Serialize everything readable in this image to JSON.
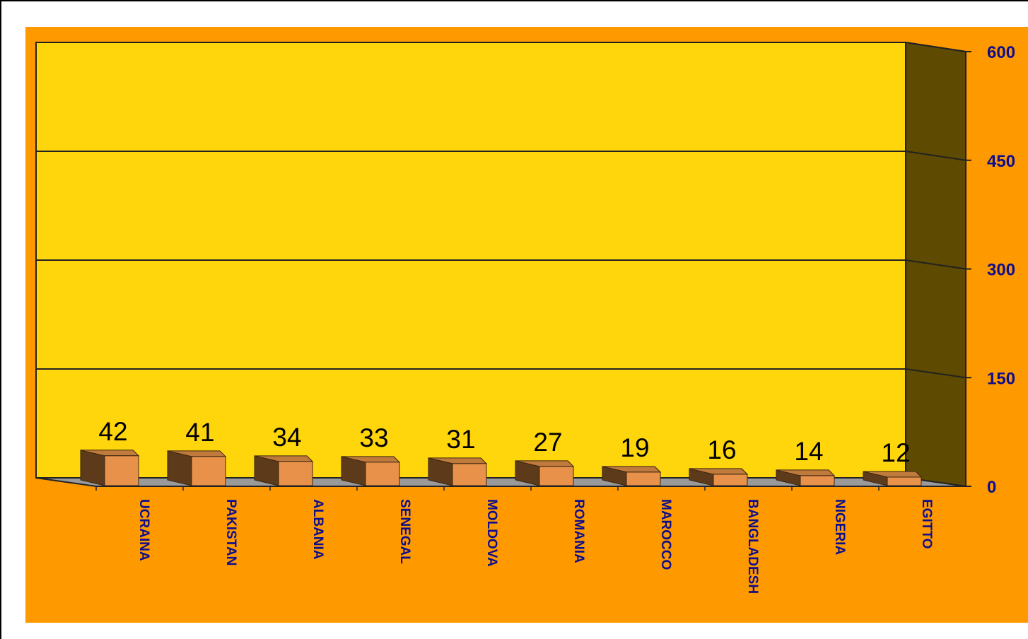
{
  "chart_data": {
    "type": "bar",
    "title": "",
    "xlabel": "",
    "ylabel": "",
    "ylim": [
      0,
      600
    ],
    "yticks": [
      "0",
      "150",
      "300",
      "450",
      "600"
    ],
    "categories": [
      "UCRAINA",
      "PAKISTAN",
      "ALBANIA",
      "SENEGAL",
      "MOLDOVA",
      "ROMANIA",
      "MAROCCO",
      "BANGLADESH",
      "NIGERIA",
      "EGITTO"
    ],
    "values": [
      42,
      41,
      34,
      33,
      31,
      27,
      19,
      16,
      14,
      12
    ],
    "value_labels": [
      "42",
      "41",
      "34",
      "33",
      "31",
      "27",
      "19",
      "16",
      "14",
      "12"
    ],
    "grid": true,
    "style": "3d-column",
    "colors": {
      "outer_background": "#ff9900",
      "plot_wall": "#ffd50b",
      "side_wall": "#5e4a00",
      "floor": "#9a9a9a",
      "bar_front": "#e8914a",
      "bar_side": "#5c3a1a",
      "bar_top": "#c07a3c",
      "labels": "#0e0e8c"
    }
  }
}
